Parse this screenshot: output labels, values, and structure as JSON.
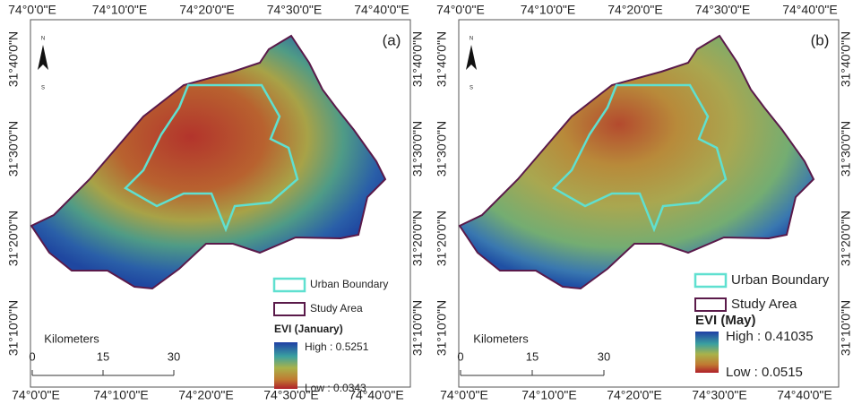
{
  "panels": [
    {
      "label": "(a)",
      "top_labels": [
        "74°0'0\"E",
        "74°10'0\"E",
        "74°20'0\"E",
        "74°30'0\"E",
        "74°40'0\"E"
      ],
      "bottom_labels": [
        "74°0'0\"E",
        "74°10'0\"E",
        "74°20'0\"E",
        "74°30'0\"E",
        "74°40'0\"E"
      ],
      "left_labels": [
        "31°40'0\"N",
        "31°30'0\"N",
        "31°20'0\"N",
        "31°10'0\"N"
      ],
      "right_labels": [
        "31°40'0\"N",
        "31°30'0\"N",
        "31°20'0\"N",
        "31°10'0\"N"
      ],
      "north": {
        "top": "N",
        "bottom": "S"
      },
      "legend": {
        "urban": "Urban Boundary",
        "study": "Study Area",
        "title": "EVI (January)",
        "high": "High : 0.5251",
        "low": "Low : 0.0343"
      },
      "scale": {
        "title": "Kilometers",
        "ticks": [
          0,
          15,
          30
        ]
      }
    },
    {
      "label": "(b)",
      "top_labels": [
        "74°0'0\"E",
        "74°10'0\"E",
        "74°20'0\"E",
        "74°30'0\"E",
        "74°40'0\"E"
      ],
      "bottom_labels": [
        "74°0'0\"E",
        "74°10'0\"E",
        "74°20'0\"E",
        "74°30'0\"E",
        "74°40'0\"E"
      ],
      "left_labels": [
        "31°40'0\"N",
        "31°30'0\"N",
        "31°20'0\"N",
        "31°10'0\"N"
      ],
      "right_labels": [
        "31°40'0\"N",
        "31°30'0\"N",
        "31°20'0\"N",
        "31°10'0\"N"
      ],
      "north": {
        "top": "N",
        "bottom": "S"
      },
      "legend": {
        "urban": "Urban Boundary",
        "study": "Study Area",
        "title": "EVI (May)",
        "high": "High : 0.41035",
        "low": "Low : 0.0515"
      },
      "scale": {
        "title": "Kilometers",
        "ticks": [
          0,
          15,
          30
        ]
      }
    }
  ]
}
